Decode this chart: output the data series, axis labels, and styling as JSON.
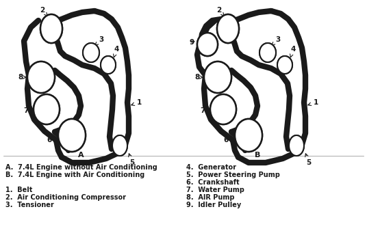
{
  "bg_color": "#ffffff",
  "belt_color": "#1a1a1a",
  "pulley_fill": "#ffffff",
  "pulley_edge": "#1a1a1a",
  "legend_lines_left": [
    "A.  7.4L Engine without Air Conditioning",
    "B.  7.4L Engine with Air Conditioning",
    "",
    "1.  Belt",
    "2.  Air Conditioning Compressor",
    "3.  Tensioner"
  ],
  "legend_lines_right": [
    "4.  Generator",
    "5.  Power Steering Pump",
    "6.  Crankshaft",
    "7.  Water Pump",
    "8.  AIR Pump",
    "9.  Idler Pulley"
  ],
  "font_size": 7.0,
  "label_fontsize": 7.5
}
